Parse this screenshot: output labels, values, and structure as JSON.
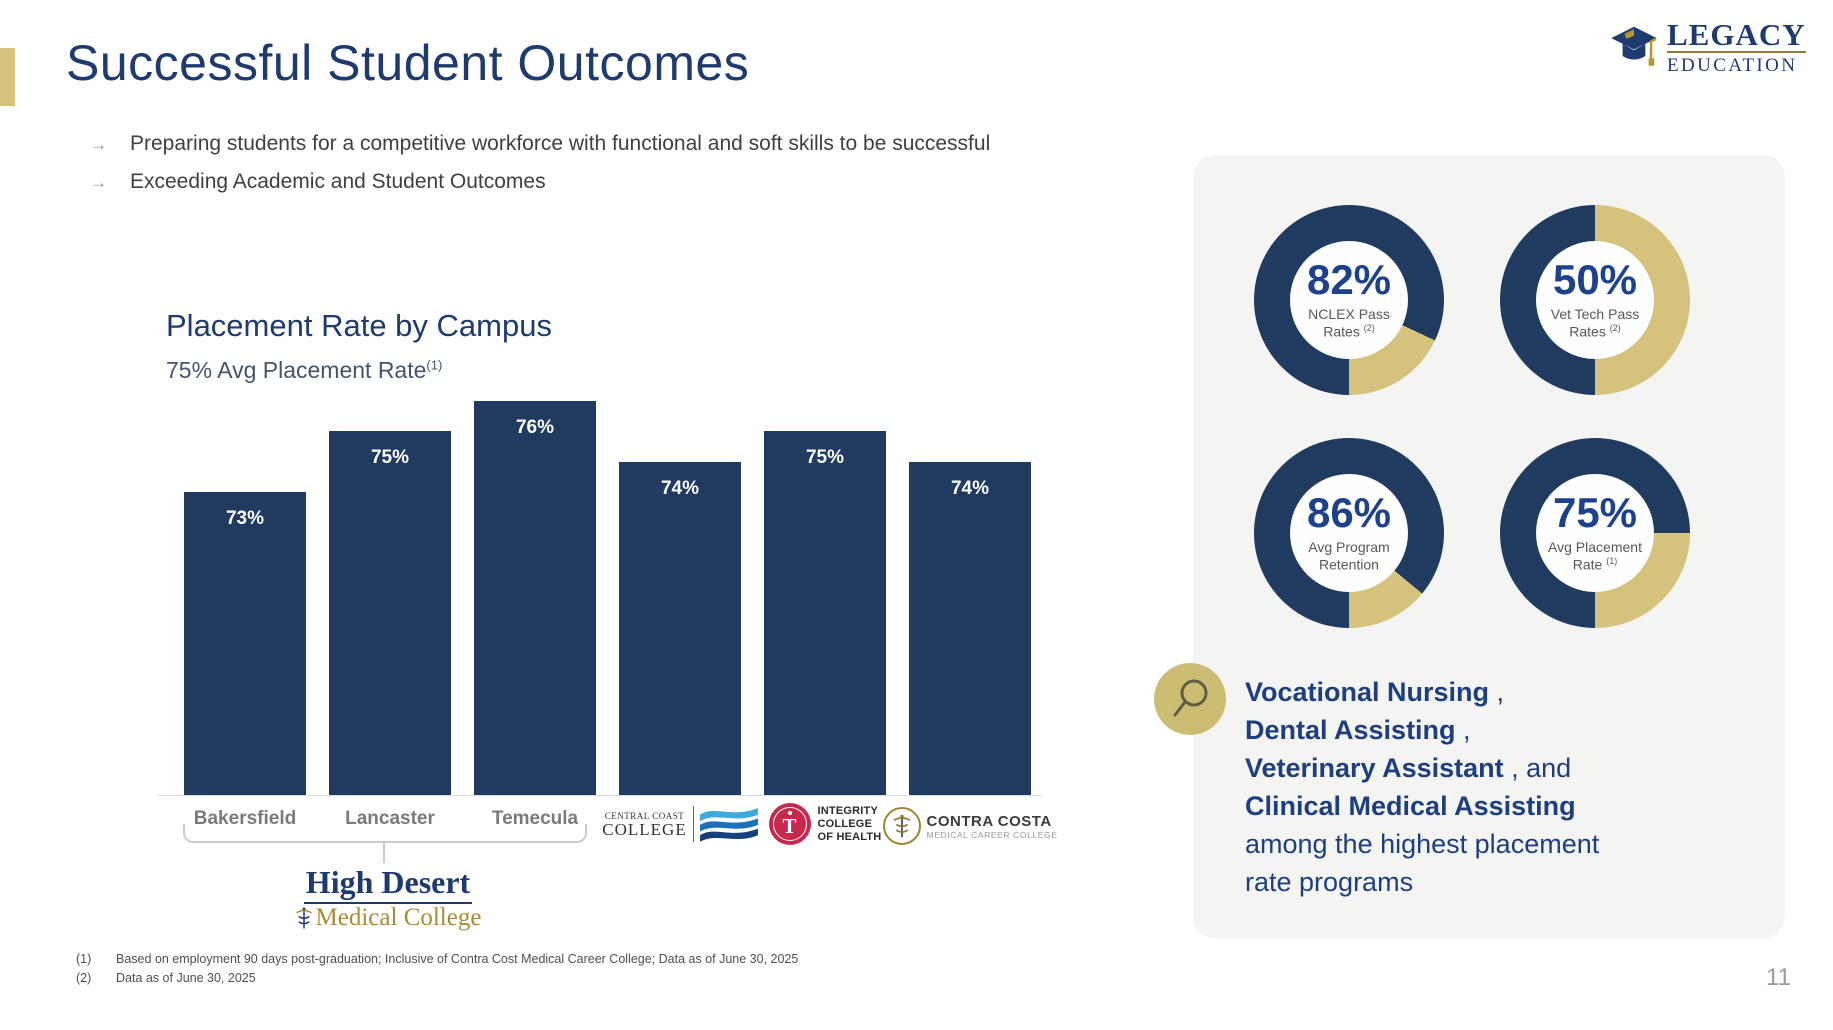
{
  "slide": {
    "title": "Successful Student Outcomes",
    "bullets": [
      "Preparing students for a competitive workforce with functional and soft skills to be successful",
      "Exceeding Academic and Student Outcomes"
    ],
    "page_number": "11",
    "footnotes": [
      {
        "num": "(1)",
        "text": "Based on employment 90 days post-graduation; Inclusive of Contra Cost Medical Career College; Data as of June 30, 2025"
      },
      {
        "num": "(2)",
        "text": "Data as of  June 30, 2025"
      }
    ]
  },
  "brand": {
    "name_top": "LEGACY",
    "name_bottom": "EDUCATION",
    "navy": "#1e3a6e",
    "gold": "#b5952f"
  },
  "colors": {
    "navy": "#203a60",
    "gold": "#d5c27c",
    "accent_bar": "#d5c27d",
    "card_bg": "#f4f4f2",
    "value_blue": "#1e418c",
    "bullet_gray": "#3f3f3f"
  },
  "chart_data": [
    {
      "type": "bar",
      "title": "Placement Rate by Campus",
      "subtitle": "75% Avg Placement Rate",
      "subtitle_sup": "(1)",
      "categories": [
        "Bakersfield",
        "Lancaster",
        "Temecula",
        "Central Coast College",
        "Integrity College of Health",
        "Contra Costa Medical Career College"
      ],
      "values": [
        73,
        75,
        76,
        74,
        75,
        74
      ],
      "unit": "%",
      "ylim": [
        63,
        76
      ],
      "xlabel": "",
      "ylabel": "",
      "grid": false,
      "legend": false,
      "data_labels": true,
      "bar_color": "#203a60",
      "label_color": "#ffffff",
      "group_annotation": "High Desert Medical College"
    },
    {
      "type": "donut_set",
      "ring_color": "#203a60",
      "rest_color": "#d5c27c",
      "start": "bottom-clockwise",
      "items": [
        {
          "value": 82,
          "value_label": "82%",
          "label_line1": "NCLEX Pass",
          "label_line2": "Rates",
          "sup": "(2)"
        },
        {
          "value": 50,
          "value_label": "50%",
          "label_line1": "Vet Tech Pass",
          "label_line2": "Rates",
          "sup": "(2)"
        },
        {
          "value": 86,
          "value_label": "86%",
          "label_line1": "Avg Program",
          "label_line2": "Retention",
          "sup": ""
        },
        {
          "value": 75,
          "value_label": "75%",
          "label_line1": "Avg Placement",
          "label_line2": "Rate",
          "sup": "(1)"
        }
      ]
    }
  ],
  "axis_logos": {
    "central_coast": {
      "line1": "CENTRAL COAST",
      "line2": "COLLEGE"
    },
    "integrity": {
      "lines": [
        "INTEGRITY",
        "COLLEGE",
        "OF HEALTH"
      ]
    },
    "contra_costa": {
      "line1": "CONTRA COSTA",
      "line2": "MEDICAL CAREER COLLEGE"
    }
  },
  "high_desert": {
    "line1": "High Desert",
    "line2": "Medical College"
  },
  "stats_card": {
    "highlight_lines": [
      {
        "bold": "Vocational Nursing",
        "rest": " ,"
      },
      {
        "bold": "Dental Assisting",
        "rest": " ,"
      },
      {
        "bold": "Veterinary Assistant",
        "rest": " , and"
      },
      {
        "bold": "Clinical Medical Assisting",
        "rest": ""
      },
      {
        "bold": "",
        "rest": "among the highest placement"
      },
      {
        "bold": "",
        "rest": "rate programs"
      }
    ]
  }
}
